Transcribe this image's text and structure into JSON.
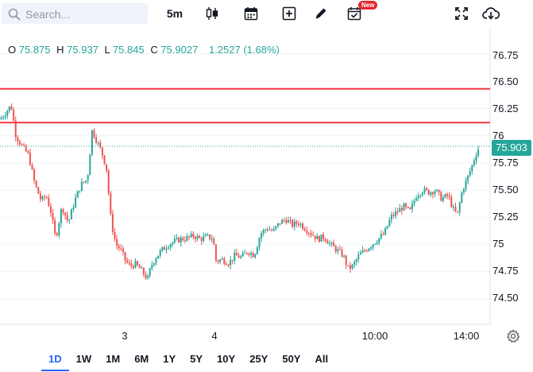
{
  "toolbar": {
    "search_placeholder": "Search...",
    "interval": "5m",
    "new_badge": "New",
    "icons": [
      "candlestick-icon",
      "calendar-icon",
      "plus-box-icon",
      "pencil-icon",
      "calendar-check-icon",
      "fullscreen-icon",
      "cloud-download-icon"
    ]
  },
  "legend": {
    "o_label": "O",
    "open": "75.875",
    "h_label": "H",
    "high": "75.937",
    "l_label": "L",
    "low": "75.845",
    "c_label": "C",
    "close": "75.9027",
    "change": "1.2527 (1.68%)"
  },
  "price_axis": [
    "76.75",
    "76.50",
    "76.25",
    "76",
    "75.75",
    "75.50",
    "75.25",
    "75",
    "74.75",
    "74.50"
  ],
  "last_price": "75.903",
  "time_axis": [
    "3",
    "4",
    "10:00",
    "14:00"
  ],
  "ranges": [
    "1D",
    "1W",
    "1M",
    "6M",
    "1Y",
    "5Y",
    "10Y",
    "25Y",
    "50Y",
    "All"
  ],
  "active_range": "1D",
  "colors": {
    "up": "#26a69a",
    "down": "#ef5350",
    "level_line": "#f23645",
    "active": "#2962ff"
  },
  "chart_data": {
    "type": "candlestick",
    "interval": "5m",
    "y_ticks": [
      74.5,
      74.75,
      75,
      75.25,
      75.5,
      75.75,
      76,
      76.25,
      76.5,
      76.75
    ],
    "x_ticks": [
      "3",
      "4",
      "10:00",
      "14:00"
    ],
    "horizontal_lines": [
      76.43,
      76.12
    ],
    "last": 75.903,
    "close_path": [
      [
        0,
        76.15
      ],
      [
        8,
        76.22
      ],
      [
        14,
        76.28
      ],
      [
        20,
        76.0
      ],
      [
        28,
        75.9
      ],
      [
        36,
        75.82
      ],
      [
        44,
        75.55
      ],
      [
        52,
        75.4
      ],
      [
        58,
        75.45
      ],
      [
        64,
        75.3
      ],
      [
        70,
        75.05
      ],
      [
        78,
        75.35
      ],
      [
        86,
        75.2
      ],
      [
        94,
        75.4
      ],
      [
        102,
        75.55
      ],
      [
        110,
        75.6
      ],
      [
        116,
        76.05
      ],
      [
        122,
        75.95
      ],
      [
        128,
        75.85
      ],
      [
        134,
        75.7
      ],
      [
        140,
        75.2
      ],
      [
        146,
        75.0
      ],
      [
        152,
        74.95
      ],
      [
        158,
        74.85
      ],
      [
        164,
        74.8
      ],
      [
        170,
        74.82
      ],
      [
        176,
        74.78
      ],
      [
        182,
        74.72
      ],
      [
        186,
        74.68
      ],
      [
        190,
        74.8
      ],
      [
        196,
        74.88
      ],
      [
        204,
        74.95
      ],
      [
        212,
        75.0
      ],
      [
        220,
        75.03
      ],
      [
        228,
        75.05
      ],
      [
        236,
        75.06
      ],
      [
        244,
        75.08
      ],
      [
        252,
        75.05
      ],
      [
        260,
        75.07
      ],
      [
        268,
        75.06
      ],
      [
        272,
        74.85
      ],
      [
        280,
        74.86
      ],
      [
        288,
        74.83
      ],
      [
        296,
        74.9
      ],
      [
        304,
        74.88
      ],
      [
        312,
        74.94
      ],
      [
        320,
        74.9
      ],
      [
        328,
        75.1
      ],
      [
        336,
        75.15
      ],
      [
        344,
        75.12
      ],
      [
        352,
        75.2
      ],
      [
        360,
        75.23
      ],
      [
        368,
        75.18
      ],
      [
        376,
        75.2
      ],
      [
        384,
        75.15
      ],
      [
        392,
        75.1
      ],
      [
        400,
        75.05
      ],
      [
        408,
        75.07
      ],
      [
        416,
        75.0
      ],
      [
        424,
        74.95
      ],
      [
        432,
        74.9
      ],
      [
        438,
        74.78
      ],
      [
        444,
        74.8
      ],
      [
        452,
        74.9
      ],
      [
        460,
        74.95
      ],
      [
        468,
        75.0
      ],
      [
        476,
        75.05
      ],
      [
        484,
        75.1
      ],
      [
        492,
        75.25
      ],
      [
        500,
        75.3
      ],
      [
        508,
        75.35
      ],
      [
        516,
        75.3
      ],
      [
        524,
        75.45
      ],
      [
        532,
        75.5
      ],
      [
        540,
        75.48
      ],
      [
        548,
        75.5
      ],
      [
        556,
        75.42
      ],
      [
        564,
        75.45
      ],
      [
        572,
        75.3
      ],
      [
        576,
        75.28
      ],
      [
        582,
        75.5
      ],
      [
        588,
        75.6
      ],
      [
        594,
        75.72
      ],
      [
        600,
        75.85
      ],
      [
        604,
        75.903
      ]
    ]
  }
}
